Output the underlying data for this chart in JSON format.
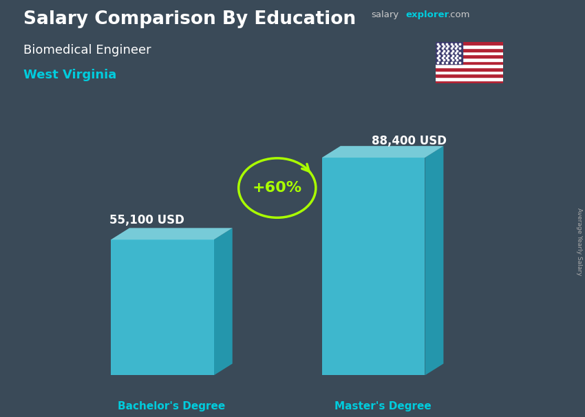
{
  "title": "Salary Comparison By Education",
  "subtitle": "Biomedical Engineer",
  "location": "West Virginia",
  "categories": [
    "Bachelor's Degree",
    "Master's Degree"
  ],
  "values": [
    55100,
    88400
  ],
  "value_labels": [
    "55,100 USD",
    "88,400 USD"
  ],
  "pct_change": "+60%",
  "bar_color_front": "#40d0e8",
  "bar_color_top": "#85e8f5",
  "bar_color_side": "#20a8c0",
  "bg_color": "#3a4a58",
  "overlay_color": "#2a3848",
  "title_color": "#ffffff",
  "subtitle_color": "#ffffff",
  "location_color": "#00ccdd",
  "value_label_color": "#ffffff",
  "category_label_color": "#00ccdd",
  "pct_color": "#aaff00",
  "arc_color": "#aaff00",
  "salary_color": "#cccccc",
  "explorer_color": "#00ccdd",
  "com_color": "#cccccc",
  "side_label": "Average Yearly Salary",
  "ylim": [
    0,
    105000
  ],
  "positions": [
    0.27,
    0.68
  ],
  "bar_width": 0.2
}
